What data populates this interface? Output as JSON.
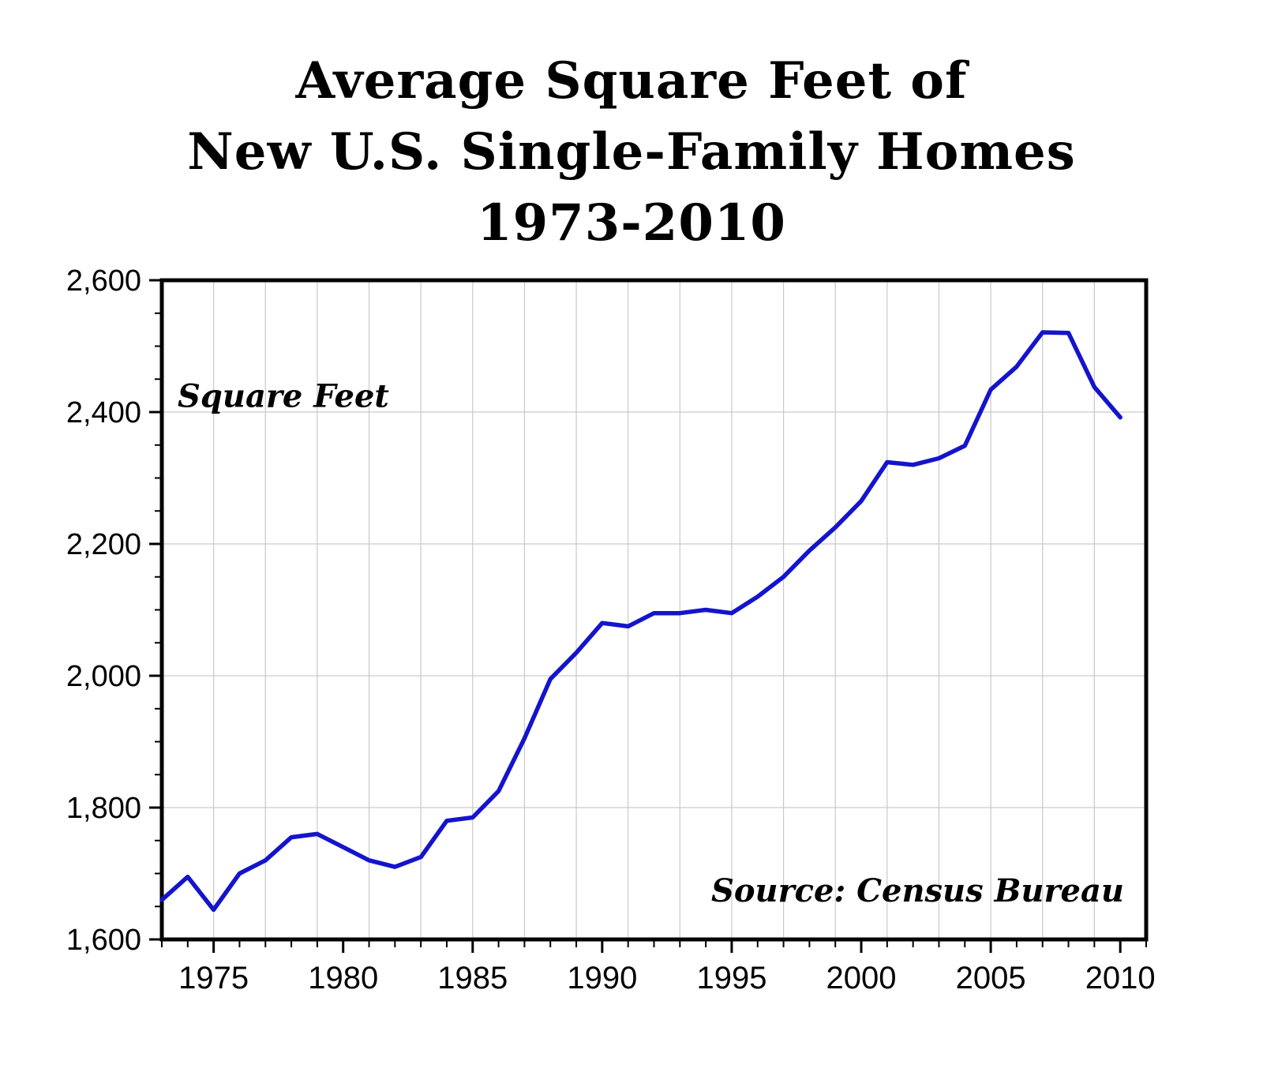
{
  "chart_data": {
    "type": "line",
    "title_lines": [
      "Average Square Feet of",
      "New U.S. Single-Family Homes",
      "1973-2010"
    ],
    "annotation": "Square Feet",
    "source": "Source: Census Bureau",
    "x": [
      1973,
      1974,
      1975,
      1976,
      1977,
      1978,
      1979,
      1980,
      1981,
      1982,
      1983,
      1984,
      1985,
      1986,
      1987,
      1988,
      1989,
      1990,
      1991,
      1992,
      1993,
      1994,
      1995,
      1996,
      1997,
      1998,
      1999,
      2000,
      2001,
      2002,
      2003,
      2004,
      2005,
      2006,
      2007,
      2008,
      2009,
      2010
    ],
    "values": [
      1660,
      1695,
      1645,
      1700,
      1720,
      1755,
      1760,
      1740,
      1720,
      1710,
      1725,
      1780,
      1785,
      1825,
      1905,
      1995,
      2035,
      2080,
      2075,
      2095,
      2095,
      2100,
      2095,
      2120,
      2150,
      2190,
      2225,
      2265,
      2324,
      2320,
      2330,
      2349,
      2434,
      2469,
      2521,
      2520,
      2438,
      2392
    ],
    "xlim": [
      1973,
      2011
    ],
    "ylim": [
      1600,
      2600
    ],
    "yticks": [
      1600,
      1800,
      2000,
      2200,
      2400,
      2600
    ],
    "ytick_labels": [
      "1,600",
      "1,800",
      "2,000",
      "2,200",
      "2,400",
      "2,600"
    ],
    "xticks": [
      1975,
      1980,
      1985,
      1990,
      1995,
      2000,
      2005,
      2010
    ],
    "y_minor_step": 50,
    "x_minor_step": 1,
    "grid_vertical_step": 2,
    "grid_vertical_start": 1975,
    "line_color": "#1414cc",
    "grid_color": "#c9c9c9",
    "axis_color": "#000000",
    "legend_position": "none",
    "grid": true
  }
}
